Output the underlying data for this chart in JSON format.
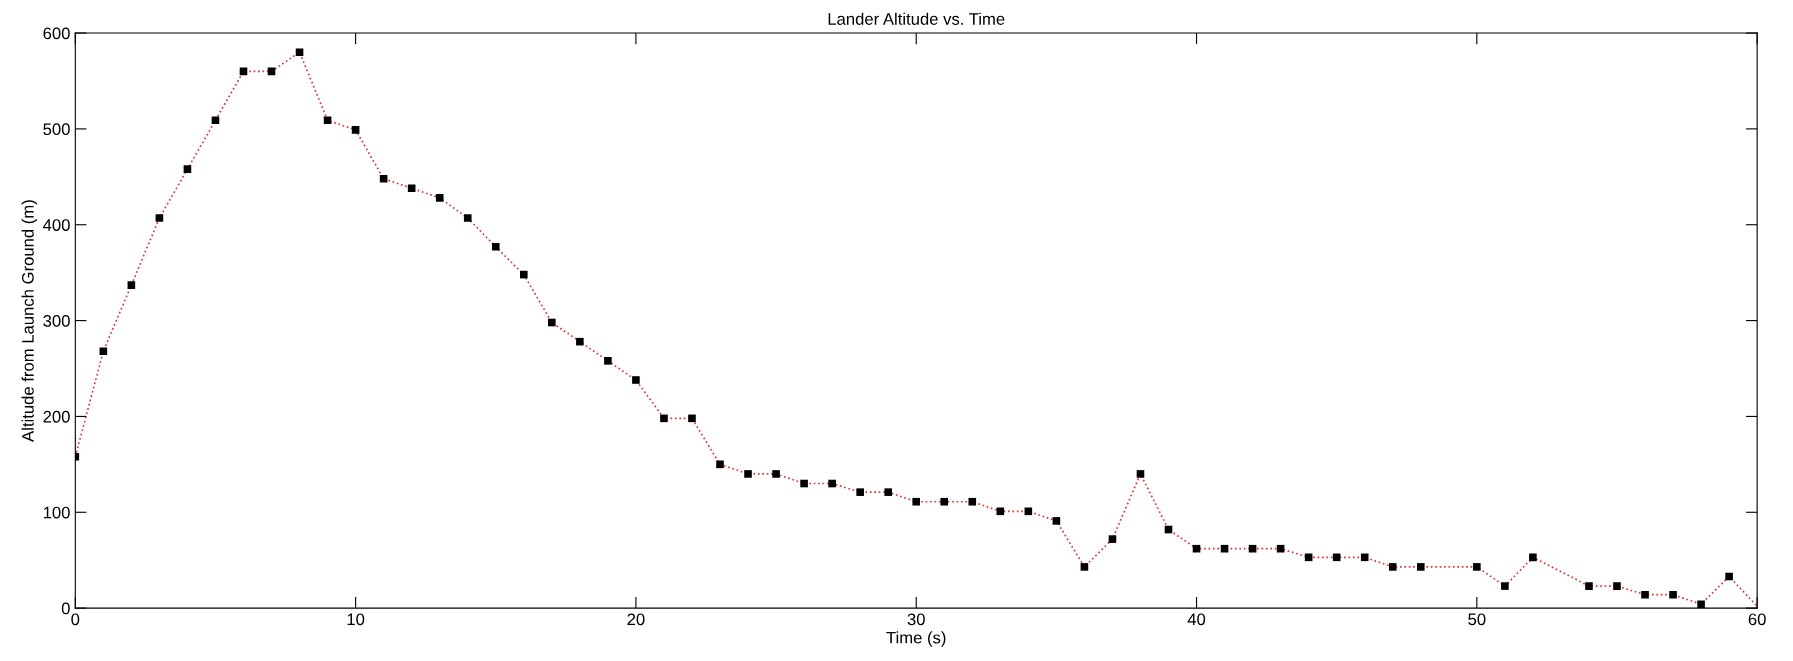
{
  "chart_data": {
    "type": "line",
    "title": "Lander Altitude vs. Time",
    "xlabel": "Time (s)",
    "ylabel": "Altitude from Launch Ground (m)",
    "xlim": [
      0,
      60
    ],
    "xticks": [
      0,
      10,
      20,
      30,
      40,
      50,
      60
    ],
    "ylim": [
      0,
      600
    ],
    "yticks": [
      0,
      100,
      200,
      300,
      400,
      500,
      600
    ],
    "grid": false,
    "legend": false,
    "series": [
      {
        "color": "#e03030",
        "line_style": "dotted",
        "marker": "none",
        "x": [
          0,
          1,
          2,
          3,
          4,
          5,
          6,
          7,
          8,
          9,
          10,
          11,
          12,
          13,
          14,
          15,
          16,
          17,
          18,
          19,
          20,
          21,
          22,
          23,
          24,
          25,
          26,
          27,
          28,
          29,
          30,
          31,
          32,
          33,
          34,
          35,
          36,
          37,
          38,
          39,
          40,
          41,
          42,
          43,
          44,
          45,
          46,
          47,
          48,
          50,
          51,
          52,
          54,
          55,
          56,
          57,
          58,
          59,
          60
        ],
        "values": [
          158,
          268,
          337,
          407,
          458,
          509,
          560,
          560,
          580,
          509,
          499,
          448,
          438,
          428,
          407,
          377,
          348,
          298,
          278,
          258,
          238,
          198,
          198,
          150,
          140,
          140,
          130,
          130,
          121,
          121,
          111,
          111,
          111,
          101,
          101,
          91,
          43,
          72,
          140,
          82,
          62,
          62,
          62,
          62,
          53,
          53,
          53,
          43,
          43,
          43,
          23,
          53,
          23,
          23,
          14,
          14,
          4,
          33,
          2
        ]
      },
      {
        "type": "scatter",
        "color": "#000000",
        "marker": "square",
        "x": [
          0,
          1,
          2,
          3,
          4,
          5,
          6,
          7,
          8,
          9,
          10,
          11,
          12,
          13,
          14,
          15,
          16,
          17,
          18,
          19,
          20,
          21,
          22,
          23,
          24,
          25,
          26,
          27,
          28,
          29,
          30,
          31,
          32,
          33,
          34,
          35,
          36,
          37,
          38,
          39,
          40,
          41,
          42,
          43,
          44,
          45,
          46,
          47,
          48,
          50,
          51,
          52,
          54,
          55,
          56,
          57,
          58,
          59
        ],
        "values": [
          158,
          268,
          337,
          407,
          458,
          509,
          560,
          560,
          580,
          509,
          499,
          448,
          438,
          428,
          407,
          377,
          348,
          298,
          278,
          258,
          238,
          198,
          198,
          150,
          140,
          140,
          130,
          130,
          121,
          121,
          111,
          111,
          111,
          101,
          101,
          91,
          43,
          72,
          140,
          82,
          62,
          62,
          62,
          62,
          53,
          53,
          53,
          43,
          43,
          43,
          23,
          53,
          23,
          23,
          14,
          14,
          4,
          33
        ]
      }
    ]
  }
}
